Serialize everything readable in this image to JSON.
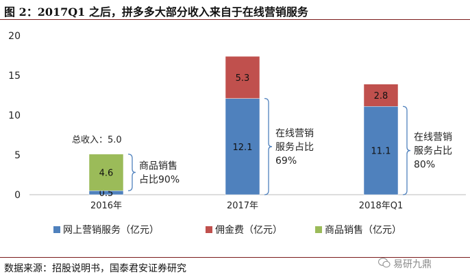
{
  "header": {
    "title": "图 2：2017Q1 之后，拼多多大部分收入来自于在线营销服务"
  },
  "chart_data": {
    "type": "bar",
    "stacked": true,
    "categories": [
      "2016年",
      "2017年",
      "2018年Q1"
    ],
    "series": [
      {
        "name": "网上营销服务（亿元）",
        "color": "#4f81bd",
        "values": [
          0.5,
          12.1,
          11.1
        ]
      },
      {
        "name": "佣金费（亿元）",
        "color": "#c0504d",
        "values": [
          0,
          5.3,
          2.8
        ]
      },
      {
        "name": "商品销售（亿元）",
        "color": "#9bbb59",
        "values": [
          4.6,
          0,
          0
        ]
      }
    ],
    "ylim": [
      0,
      20
    ],
    "yticks": [
      0,
      5,
      10,
      15,
      20
    ],
    "legend_position": "bottom",
    "annotations": [
      {
        "category_index": 0,
        "text_lines": [
          "商品销售",
          "占比90%"
        ]
      },
      {
        "category_index": 1,
        "text_lines": [
          "在线营销",
          "服务占比",
          "69%"
        ]
      },
      {
        "category_index": 2,
        "text_lines": [
          "在线营销",
          "服务占比",
          "80%"
        ]
      }
    ],
    "total_label": "总收入：5.0"
  },
  "footer": {
    "source": "数据来源：招股说明书，国泰君安证券研究",
    "watermark": "易研九鼎"
  }
}
